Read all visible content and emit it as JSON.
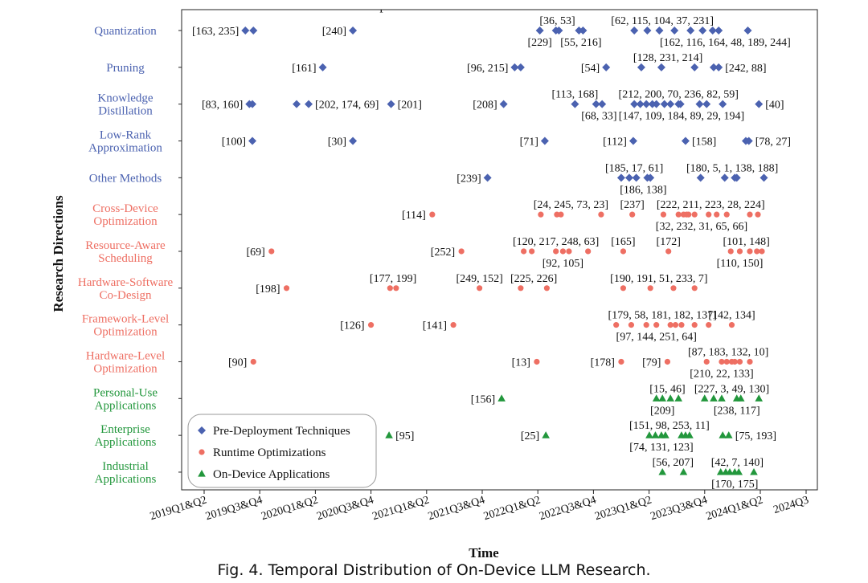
{
  "chart_data": {
    "type": "scatter",
    "title": "Temporal Distribution of On-Device LLM Research",
    "xlabel": "Time",
    "ylabel": "Research Directions",
    "x_ticks": [
      "2019Q1&Q2",
      "2019Q3&Q4",
      "2020Q1&Q2",
      "2020Q3&Q4",
      "2021Q1&Q2",
      "2021Q3&Q4",
      "2022Q1&Q2",
      "2022Q3&Q4",
      "2023Q1&Q2",
      "2023Q3&Q4",
      "2024Q1&Q2",
      "2024Q3"
    ],
    "x_range": [
      2019.0,
      2024.75
    ],
    "grid": false,
    "legend_placement": "bottom-left",
    "categories": [
      {
        "name": "Quantization",
        "group": "pre"
      },
      {
        "name": "Pruning",
        "group": "pre"
      },
      {
        "name": "Knowledge Distillation",
        "group": "pre"
      },
      {
        "name": "Low-Rank Approximation",
        "group": "pre"
      },
      {
        "name": "Other Methods",
        "group": "pre"
      },
      {
        "name": "Cross-Device Optimization",
        "group": "run"
      },
      {
        "name": "Resource-Aware Scheduling",
        "group": "run"
      },
      {
        "name": "Hardware-Software Co-Design",
        "group": "run"
      },
      {
        "name": "Framework-Level Optimization",
        "group": "run"
      },
      {
        "name": "Hardware-Level Optimization",
        "group": "run"
      },
      {
        "name": "Personal-Use Applications",
        "group": "app"
      },
      {
        "name": "Enterprise Applications",
        "group": "app"
      },
      {
        "name": "Industrial Applications",
        "group": "app"
      }
    ],
    "series": [
      {
        "id": "pre",
        "name": "Pre-Deployment Techniques",
        "marker": "diamond",
        "color": "#4b62b0"
      },
      {
        "id": "run",
        "name": "Runtime Optimizations",
        "marker": "circle",
        "color": "#ee6f63"
      },
      {
        "id": "app",
        "name": "On-Device Applications",
        "marker": "triangle",
        "color": "#22973c"
      }
    ],
    "points": [
      {
        "row": 0,
        "x": [
          2019.41,
          2019.49
        ],
        "label": "[163, 235]",
        "pos": "left"
      },
      {
        "row": 0,
        "x": [
          2020.48
        ],
        "label": "[240]",
        "pos": "left"
      },
      {
        "row": 0,
        "x": [
          2022.34
        ],
        "label": "[229]",
        "pos": "below"
      },
      {
        "row": 0,
        "x": [
          2022.5,
          2022.53
        ],
        "label": "[36, 53]",
        "pos": "above"
      },
      {
        "row": 0,
        "x": [
          2022.73,
          2022.77
        ],
        "label": "[55, 216]",
        "pos": "below"
      },
      {
        "row": 0,
        "x": [
          2023.28,
          2023.41,
          2023.53,
          2023.68,
          2023.84
        ],
        "label": "[62, 115, 104, 37, 231]",
        "pos": "above"
      },
      {
        "row": 0,
        "x": [
          2023.96,
          2024.06,
          2024.12,
          2024.41
        ],
        "label": "[162, 116, 164, 48, 189, 244]",
        "pos": "below"
      },
      {
        "row": 1,
        "x": [
          2020.18
        ],
        "label": "[161]",
        "pos": "left"
      },
      {
        "row": 1,
        "x": [
          2022.09,
          2022.15
        ],
        "label": "[96, 215]",
        "pos": "left"
      },
      {
        "row": 1,
        "x": [
          2023.0
        ],
        "label": "[54]",
        "pos": "left"
      },
      {
        "row": 1,
        "x": [
          2023.35,
          2023.55,
          2023.88
        ],
        "label": "[128, 231, 214]",
        "pos": "above"
      },
      {
        "row": 1,
        "x": [
          2024.07,
          2024.12
        ],
        "label": "[242, 88]",
        "pos": "right"
      },
      {
        "row": 2,
        "x": [
          2019.45,
          2019.48
        ],
        "label": "[83, 160]",
        "pos": "left"
      },
      {
        "row": 2,
        "x": [
          2019.92,
          2020.04
        ],
        "label": "[202, 174, 69]",
        "pos": "right"
      },
      {
        "row": 2,
        "x": [
          2020.86
        ],
        "label": "[201]",
        "pos": "right"
      },
      {
        "row": 2,
        "x": [
          2021.98
        ],
        "label": "[208]",
        "pos": "left"
      },
      {
        "row": 2,
        "x": [
          2022.69
        ],
        "label": "[113, 168]",
        "pos": "above"
      },
      {
        "row": 2,
        "x": [
          2022.9,
          2022.96
        ],
        "label": "[68, 33]",
        "pos": "below"
      },
      {
        "row": 2,
        "x": [
          2023.28,
          2023.34,
          2023.4,
          2023.46,
          2023.58,
          2023.64,
          2023.74,
          2023.93,
          2024.16
        ],
        "label": "[212, 200, 70, 236, 82, 59]",
        "pos": "above"
      },
      {
        "row": 2,
        "x": [
          2023.5,
          2023.72,
          2024.0
        ],
        "label": "[147, 109, 184, 89, 29, 194]",
        "pos": "below"
      },
      {
        "row": 2,
        "x": [
          2024.52
        ],
        "label": "[40]",
        "pos": "right"
      },
      {
        "row": 3,
        "x": [
          2019.48
        ],
        "label": "[100]",
        "pos": "left"
      },
      {
        "row": 3,
        "x": [
          2020.48
        ],
        "label": "[30]",
        "pos": "left"
      },
      {
        "row": 3,
        "x": [
          2022.39
        ],
        "label": "[71]",
        "pos": "left"
      },
      {
        "row": 3,
        "x": [
          2023.27
        ],
        "label": "[112]",
        "pos": "left"
      },
      {
        "row": 3,
        "x": [
          2023.79
        ],
        "label": "[158]",
        "pos": "right"
      },
      {
        "row": 3,
        "x": [
          2024.39,
          2024.42
        ],
        "label": "[78, 27]",
        "pos": "right"
      },
      {
        "row": 4,
        "x": [
          2021.82
        ],
        "label": "[239]",
        "pos": "left"
      },
      {
        "row": 4,
        "x": [
          2023.15,
          2023.23,
          2023.41
        ],
        "label": "[185, 17, 61]",
        "pos": "above"
      },
      {
        "row": 4,
        "x": [
          2023.3,
          2023.44
        ],
        "label": "[186, 138]",
        "pos": "below"
      },
      {
        "row": 4,
        "x": [
          2023.94,
          2024.18,
          2024.28,
          2024.3,
          2024.57
        ],
        "label": "[180, 5, 1, 138, 188]",
        "pos": "above"
      },
      {
        "row": 5,
        "x": [
          2021.27
        ],
        "label": "[114]",
        "pos": "left"
      },
      {
        "row": 5,
        "x": [
          2022.35,
          2022.51,
          2022.55,
          2022.95
        ],
        "label": "[24, 245, 73, 23]",
        "pos": "above"
      },
      {
        "row": 5,
        "x": [
          2023.26
        ],
        "label": "[237]",
        "pos": "above"
      },
      {
        "row": 5,
        "x": [
          2023.57,
          2023.72,
          2023.77,
          2023.82,
          2023.88,
          2024.02,
          2024.2,
          2024.43,
          2024.51
        ],
        "label": "[222, 211, 223, 28, 224]",
        "pos": "above"
      },
      {
        "row": 5,
        "x": [
          2023.8,
          2024.1
        ],
        "label": "[32, 232, 31, 65, 66]",
        "pos": "below"
      },
      {
        "row": 6,
        "x": [
          2019.67
        ],
        "label": "[69]",
        "pos": "left"
      },
      {
        "row": 6,
        "x": [
          2021.56
        ],
        "label": "[252]",
        "pos": "left"
      },
      {
        "row": 6,
        "x": [
          2022.18,
          2022.26,
          2022.5,
          2022.63,
          2022.82
        ],
        "label": "[120, 217, 248, 63]",
        "pos": "above"
      },
      {
        "row": 6,
        "x": [
          2022.57
        ],
        "label": "[92, 105]",
        "pos": "below"
      },
      {
        "row": 6,
        "x": [
          2023.17
        ],
        "label": "[165]",
        "pos": "above"
      },
      {
        "row": 6,
        "x": [
          2023.62
        ],
        "label": "[172]",
        "pos": "above"
      },
      {
        "row": 6,
        "x": [
          2024.24,
          2024.43,
          2024.5,
          2024.55
        ],
        "label": "[101, 148]",
        "pos": "above"
      },
      {
        "row": 6,
        "x": [
          2024.33
        ],
        "label": "[110, 150]",
        "pos": "below"
      },
      {
        "row": 7,
        "x": [
          2019.82
        ],
        "label": "[198]",
        "pos": "left"
      },
      {
        "row": 7,
        "x": [
          2020.85,
          2020.91
        ],
        "label": "[177, 199]",
        "pos": "above"
      },
      {
        "row": 7,
        "x": [
          2021.74
        ],
        "label": "[249, 152]",
        "pos": "above"
      },
      {
        "row": 7,
        "x": [
          2022.15,
          2022.41
        ],
        "label": "[225, 226]",
        "pos": "above"
      },
      {
        "row": 7,
        "x": [
          2023.17,
          2023.44,
          2023.67,
          2023.88
        ],
        "label": "[190, 191, 51, 233, 7]",
        "pos": "above"
      },
      {
        "row": 8,
        "x": [
          2020.66
        ],
        "label": "[126]",
        "pos": "left"
      },
      {
        "row": 8,
        "x": [
          2021.48
        ],
        "label": "[141]",
        "pos": "left"
      },
      {
        "row": 8,
        "x": [
          2023.1,
          2023.25,
          2023.4,
          2023.64,
          2023.69,
          2023.75,
          2023.88,
          2024.02
        ],
        "label": "[179, 58, 181, 182, 137]",
        "pos": "above"
      },
      {
        "row": 8,
        "x": [
          2024.25
        ],
        "label": "[142, 134]",
        "pos": "above"
      },
      {
        "row": 8,
        "x": [
          2023.5
        ],
        "label": "[97, 144, 251, 64]",
        "pos": "below"
      },
      {
        "row": 9,
        "x": [
          2019.49
        ],
        "label": "[90]",
        "pos": "left"
      },
      {
        "row": 9,
        "x": [
          2022.31
        ],
        "label": "[13]",
        "pos": "left"
      },
      {
        "row": 9,
        "x": [
          2023.15
        ],
        "label": "[178]",
        "pos": "left"
      },
      {
        "row": 9,
        "x": [
          2023.61
        ],
        "label": "[79]",
        "pos": "left"
      },
      {
        "row": 9,
        "x": [
          2024.0,
          2024.2,
          2024.25,
          2024.28,
          2024.33,
          2024.43
        ],
        "label": "[87, 183, 132, 10]",
        "pos": "above"
      },
      {
        "row": 9,
        "x": [
          2024.15
        ],
        "label": "[210, 22, 133]",
        "pos": "below"
      },
      {
        "row": 10,
        "x": [
          2021.96
        ],
        "label": "[156]",
        "pos": "left"
      },
      {
        "row": 10,
        "x": [
          2023.5,
          2023.64,
          2023.72
        ],
        "label": "[15, 46]",
        "pos": "above"
      },
      {
        "row": 10,
        "x": [
          2023.56
        ],
        "label": "[209]",
        "pos": "below"
      },
      {
        "row": 10,
        "x": [
          2023.98,
          2024.07,
          2024.15,
          2024.34,
          2024.52
        ],
        "label": "[227, 3, 49, 130]",
        "pos": "above"
      },
      {
        "row": 10,
        "x": [
          2024.3
        ],
        "label": "[238, 117]",
        "pos": "below"
      },
      {
        "row": 11,
        "x": [
          2020.84
        ],
        "label": "[95]",
        "pos": "right"
      },
      {
        "row": 11,
        "x": [
          2022.4
        ],
        "label": "[25]",
        "pos": "left"
      },
      {
        "row": 11,
        "x": [
          2023.43,
          2023.49,
          2023.59,
          2023.75,
          2023.79,
          2023.83
        ],
        "label": "[151, 98, 253, 11]",
        "pos": "above"
      },
      {
        "row": 11,
        "x": [
          2023.55
        ],
        "label": "[74, 131, 123]",
        "pos": "below"
      },
      {
        "row": 11,
        "x": [
          2024.16,
          2024.22
        ],
        "label": "[75, 193]",
        "pos": "right"
      },
      {
        "row": 12,
        "x": [
          2023.56,
          2023.77
        ],
        "label": "[56, 207]",
        "pos": "above"
      },
      {
        "row": 12,
        "x": [
          2024.14,
          2024.19,
          2024.23,
          2024.32,
          2024.47
        ],
        "label": "[42, 7, 140]",
        "pos": "above"
      },
      {
        "row": 12,
        "x": [
          2024.28
        ],
        "label": "[170, 175]",
        "pos": "below"
      }
    ]
  },
  "caption": "Fig. 4.  Temporal Distribution of On-Device LLM Research."
}
